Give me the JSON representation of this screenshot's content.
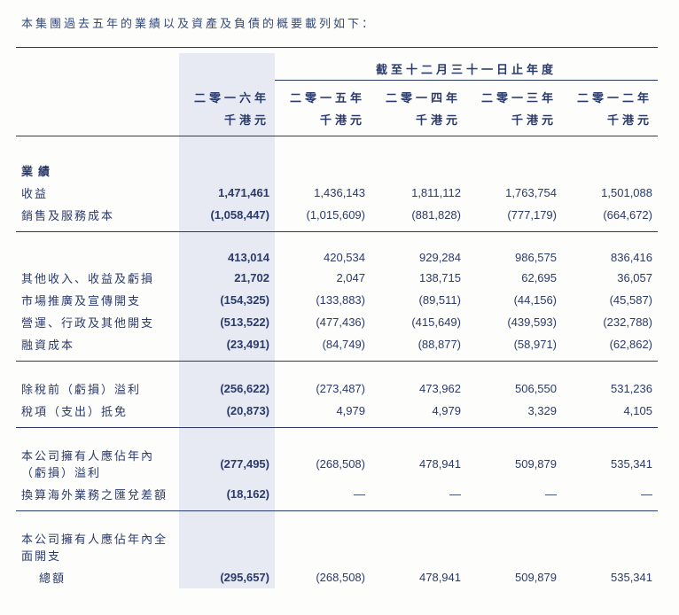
{
  "intro": "本集團過去五年的業績以及資產及負債的概要載列如下：",
  "header": {
    "group_title": "截至十二月三十一日止年度",
    "years": [
      "二零一六年",
      "二零一五年",
      "二零一四年",
      "二零一三年",
      "二零一二年"
    ],
    "unit": "千港元"
  },
  "rows": [
    {
      "type": "section",
      "label": "業績"
    },
    {
      "label": "收益",
      "v": [
        "1,471,461",
        "1,436,143",
        "1,811,112",
        "1,763,754",
        "1,501,088"
      ]
    },
    {
      "label": "銷售及服務成本",
      "v": [
        "(1,058,447)",
        "(1,015,609)",
        "(881,828)",
        "(777,179)",
        "(664,672)"
      ],
      "rule_below": true
    },
    {
      "type": "spacer"
    },
    {
      "label": "",
      "v": [
        "413,014",
        "420,534",
        "929,284",
        "986,575",
        "836,416"
      ]
    },
    {
      "label": "其他收入、收益及虧損",
      "v": [
        "21,702",
        "2,047",
        "138,715",
        "62,695",
        "36,057"
      ]
    },
    {
      "label": "市場推廣及宣傳開支",
      "v": [
        "(154,325)",
        "(133,883)",
        "(89,511)",
        "(44,156)",
        "(45,587)"
      ]
    },
    {
      "label": "營運、行政及其他開支",
      "v": [
        "(513,522)",
        "(477,436)",
        "(415,649)",
        "(439,593)",
        "(232,788)"
      ]
    },
    {
      "label": "融資成本",
      "v": [
        "(23,491)",
        "(84,749)",
        "(88,877)",
        "(58,971)",
        "(62,862)"
      ],
      "rule_below": true
    },
    {
      "type": "spacer"
    },
    {
      "label": "除稅前（虧損）溢利",
      "v": [
        "(256,622)",
        "(273,487)",
        "473,962",
        "506,550",
        "531,236"
      ]
    },
    {
      "label": "稅項（支出）抵免",
      "v": [
        "(20,873)",
        "4,979",
        "4,979",
        "3,329",
        "4,105"
      ],
      "rule_below": true
    },
    {
      "type": "spacer"
    },
    {
      "label": "本公司擁有人應佔年內（虧損）溢利",
      "v": [
        "(277,495)",
        "(268,508)",
        "478,941",
        "509,879",
        "535,341"
      ]
    },
    {
      "label": "換算海外業務之匯兌差額",
      "v": [
        "(18,162)",
        "—",
        "—",
        "—",
        "—"
      ],
      "rule_below": true
    },
    {
      "type": "spacer"
    },
    {
      "label": "本公司擁有人應佔年內全面開支",
      "two_line": true
    },
    {
      "label": "總額",
      "indent": true,
      "v": [
        "(295,657)",
        "(268,508)",
        "478,941",
        "509,879",
        "535,341"
      ]
    }
  ]
}
